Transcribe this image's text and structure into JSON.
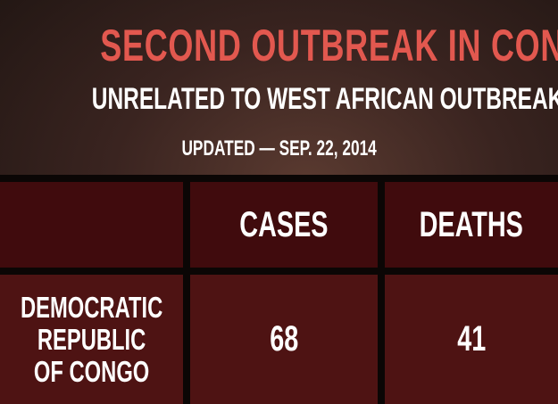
{
  "header": {
    "title": "SECOND OUTBREAK IN CONGO",
    "subtitle": "UNRELATED TO WEST AFRICAN OUTBREAK",
    "updated": "UPDATED — SEP. 22, 2014"
  },
  "table": {
    "columns": [
      "CASES",
      "DEATHS"
    ],
    "rows": [
      {
        "label": "DEMOCRATIC REPUBLIC OF CONGO",
        "values": [
          68,
          41
        ]
      }
    ]
  }
}
